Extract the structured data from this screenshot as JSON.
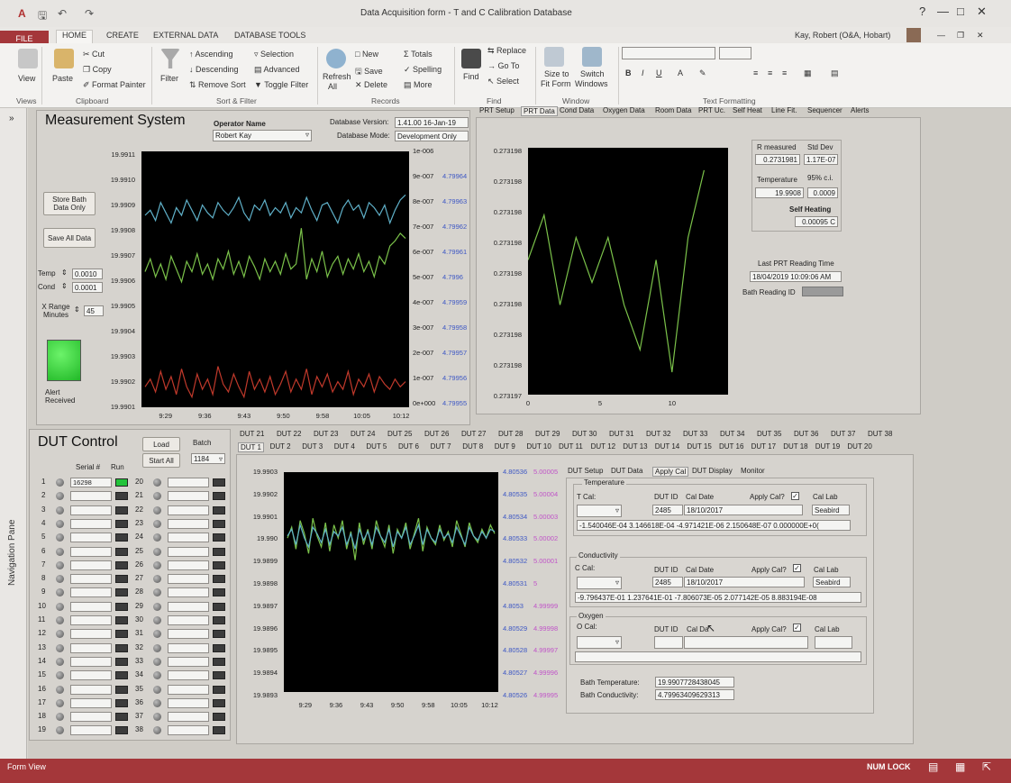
{
  "window": {
    "title": "Data Acquisition form - T and C Calibration Database",
    "user": "Kay, Robert (O&A, Hobart)"
  },
  "ribbon_tabs": [
    "FILE",
    "HOME",
    "CREATE",
    "EXTERNAL DATA",
    "DATABASE TOOLS"
  ],
  "ribbon": {
    "view": "View",
    "views_group": "Views",
    "paste": "Paste",
    "cut": "Cut",
    "copy": "Copy",
    "format_painter": "Format Painter",
    "clipboard_group": "Clipboard",
    "filter": "Filter",
    "ascending": "Ascending",
    "descending": "Descending",
    "remove_sort": "Remove Sort",
    "selection": "Selection",
    "advanced": "Advanced",
    "toggle_filter": "Toggle Filter",
    "sort_filter_group": "Sort & Filter",
    "refresh": "Refresh",
    "refresh2": "All",
    "new": "New",
    "save": "Save",
    "delete": "Delete",
    "totals": "Totals",
    "spelling": "Spelling",
    "more": "More",
    "records_group": "Records",
    "find": "Find",
    "replace": "Replace",
    "goto": "Go To",
    "select": "Select",
    "find_group": "Find",
    "size_to": "Size to",
    "fit_form": "Fit Form",
    "switch": "Switch",
    "windows": "Windows",
    "window_group": "Window",
    "text_formatting_group": "Text Formatting"
  },
  "nav_pane": "Navigation Pane",
  "measurement": {
    "title": "Measurement System",
    "operator_label": "Operator Name",
    "operator_value": "Robert Kay",
    "db_version_label": "Database Version:",
    "db_version_value": "1.41.00 16-Jan-19",
    "db_mode_label": "Database Mode:",
    "db_mode_value": "Development Only",
    "store_bath": "Store Bath Data Only",
    "save_all": "Save All Data",
    "temp_label": "Temp",
    "temp_value": "0.0010",
    "cond_label": "Cond",
    "cond_value": "0.0001",
    "xrange_label": "X Range Minutes",
    "xrange_value": "45",
    "alert_label": "Alert Received"
  },
  "tabs_prt": [
    "PRT Setup",
    "PRT Data",
    "Cond Data",
    "Oxygen Data",
    "Room Data",
    "PRT Uc.",
    "Self Heat",
    "Line Fit.",
    "Sequencer",
    "Alerts"
  ],
  "prt_readings": {
    "r_measured_label": "R measured",
    "std_dev_label": "Std Dev",
    "r_measured": "0.2731981",
    "std_dev": "1.17E-07",
    "temperature_label": "Temperature",
    "ci_label": "95% c.i.",
    "temperature": "19.9908",
    "ci": "0.0009",
    "self_heating_label": "Self Heating",
    "self_heating": "0.00095 C",
    "last_reading_label": "Last PRT Reading Time",
    "last_reading": "18/04/2019 10:09:06 AM",
    "bath_reading_id_label": "Bath Reading ID"
  },
  "chart_data": [
    {
      "type": "line",
      "yticks_left": [
        "19.9911",
        "19.9910",
        "19.9909",
        "19.9908",
        "19.9907",
        "19.9906",
        "19.9905",
        "19.9904",
        "19.9903",
        "19.9902",
        "19.9901"
      ],
      "yticks_right_a": [
        "1e-006",
        "9e-007",
        "8e-007",
        "7e-007",
        "6e-007",
        "5e-007",
        "4e-007",
        "3e-007",
        "2e-007",
        "1e-007",
        "0e+000"
      ],
      "yticks_right_b": [
        "",
        "4.79964",
        "4.79963",
        "4.79962",
        "4.79961",
        "4.7996",
        "4.79959",
        "4.79958",
        "4.79957",
        "4.79956",
        "4.79955"
      ],
      "xticks": [
        "9:29",
        "9:36",
        "9:43",
        "9:50",
        "9:58",
        "10:05",
        "10:12"
      ],
      "series": [
        {
          "color": "#5fb0c8",
          "values": [
            19.99085,
            19.99087,
            19.99083,
            19.9909,
            19.99086,
            19.99082,
            19.99088,
            19.99085,
            19.99091,
            19.99087,
            19.99083,
            19.99089,
            19.99086,
            19.99084,
            19.9909,
            19.99087,
            19.99085,
            19.99088,
            19.99092,
            19.99086,
            19.99083,
            19.99089,
            19.99087,
            19.99091,
            19.99085,
            19.99088,
            19.99086,
            19.9909,
            19.99084,
            19.99088,
            19.99086,
            19.99092,
            19.99087,
            19.99083,
            19.99089,
            19.9909,
            19.99086,
            19.99082,
            19.99088,
            19.99091,
            19.99087,
            19.99089,
            19.99084,
            19.9909,
            19.99088,
            19.99085,
            19.99089,
            19.99082,
            19.99087,
            19.99091,
            19.99093
          ]
        },
        {
          "color": "#7bc24a",
          "values": [
            19.99063,
            19.99068,
            19.99061,
            19.99066,
            19.9906,
            19.99069,
            19.99064,
            19.99059,
            19.99067,
            19.99063,
            19.9907,
            19.99062,
            19.99066,
            19.9906,
            19.99068,
            19.99064,
            19.99071,
            19.99062,
            19.99067,
            19.99061,
            19.99069,
            19.99065,
            19.9906,
            19.99068,
            19.99063,
            19.99067,
            19.99062,
            19.9907,
            19.99064,
            19.99066,
            19.9908,
            19.9906,
            19.99068,
            19.99063,
            19.99071,
            19.99061,
            19.99066,
            19.99069,
            19.99062,
            19.99068,
            19.99064,
            19.9907,
            19.99063,
            19.99067,
            19.99061,
            19.99069,
            19.99066,
            19.99073,
            19.99075,
            19.99078,
            19.99076
          ]
        },
        {
          "color": "#c0392b",
          "values": [
            19.99018,
            19.99021,
            19.99016,
            19.99024,
            19.99017,
            19.99022,
            19.99015,
            19.99025,
            19.99018,
            19.99014,
            19.99023,
            19.99017,
            19.99021,
            19.99015,
            19.99026,
            19.99019,
            19.99016,
            19.99023,
            19.99018,
            19.99014,
            19.99024,
            19.99017,
            19.99021,
            19.99016,
            19.99022,
            19.99015,
            19.99019,
            19.99024,
            19.99016,
            19.99021,
            19.99017,
            19.99025,
            19.99015,
            19.99022,
            19.99018,
            19.99023,
            19.99016,
            19.9902,
            19.99017,
            19.99024,
            19.99015,
            19.99021,
            19.99018,
            19.99023,
            19.99016,
            19.99022,
            19.99019,
            19.99017,
            19.99021,
            19.99018,
            19.9902
          ]
        }
      ],
      "ylim": [
        19.9901,
        19.9911
      ]
    },
    {
      "type": "line",
      "yticks": [
        "0.273198",
        "0.273198",
        "0.273198",
        "0.273198",
        "0.273198",
        "0.273198",
        "0.273198",
        "0.273198",
        "0.273197"
      ],
      "xticks": [
        "0",
        "5",
        "10"
      ],
      "series": [
        {
          "color": "#7bc24a",
          "x": [
            0,
            1,
            2,
            3,
            4,
            5,
            6,
            7,
            8,
            9,
            10,
            11
          ],
          "values": [
            0.2731982,
            0.2731984,
            0.273198,
            0.2731983,
            0.2731981,
            0.2731983,
            0.273198,
            0.2731978,
            0.2731982,
            0.2731977,
            0.2731983,
            0.2731986
          ]
        }
      ],
      "xlim": [
        0,
        12.5
      ]
    },
    {
      "type": "line",
      "yticks_left": [
        "19.9903",
        "19.9902",
        "19.9901",
        "19.990",
        "19.9899",
        "19.9898",
        "19.9897",
        "19.9896",
        "19.9895",
        "19.9894",
        "19.9893"
      ],
      "yticks_right_a": [
        "4.80536",
        "4.80535",
        "4.80534",
        "4.80533",
        "4.80532",
        "4.80531",
        "4.8053",
        "4.80529",
        "4.80528",
        "4.80527",
        "4.80526"
      ],
      "yticks_right_b": [
        "5.00005",
        "5.00004",
        "5.00003",
        "5.00002",
        "5.00001",
        "5",
        "4.99999",
        "4.99998",
        "4.99997",
        "4.99996",
        "4.99995"
      ],
      "xticks": [
        "9:29",
        "9:36",
        "9:43",
        "9:50",
        "9:58",
        "10:05",
        "10:12"
      ],
      "series": [
        {
          "color": "#7bc24a",
          "values": [
            19.99,
            19.99005,
            19.98995,
            19.99008,
            19.99002,
            19.98993,
            19.99009,
            19.99001,
            19.98996,
            19.99007,
            19.98994,
            19.99006,
            19.99,
            19.99008,
            19.98995,
            19.99003,
            19.9899,
            19.99007,
            19.98997,
            19.99004,
            19.98995,
            19.99008,
            19.99001,
            19.98996,
            19.99006,
            19.98993,
            19.99004,
            19.99,
            19.99007,
            19.98995,
            19.99002,
            19.99009,
            19.98994,
            19.99005,
            19.99,
            19.98997,
            19.99006,
            19.98999,
            19.99003,
            19.98996,
            19.99008,
            19.99002,
            19.98996,
            19.99007,
            19.99001,
            19.98998,
            19.99004,
            19.99,
            19.99006,
            19.99002
          ]
        },
        {
          "color": "#5fb0c8",
          "values": [
            19.99001,
            19.99004,
            19.98997,
            19.99006,
            19.99,
            19.98996,
            19.99005,
            19.99002,
            19.98998,
            19.99004,
            19.98997,
            19.99003,
            19.99001,
            19.99005,
            19.98997,
            19.99002,
            19.98995,
            19.99004,
            19.98999,
            19.99003,
            19.98997,
            19.99005,
            19.99001,
            19.98998,
            19.99004,
            19.98996,
            19.99003,
            19.99,
            19.99005,
            19.98997,
            19.99001,
            19.99006,
            19.98997,
            19.99004,
            19.99,
            19.98998,
            19.99004,
            19.99,
            19.99002,
            19.98998,
            19.99005,
            19.99001,
            19.98997,
            19.99005,
            19.99001,
            19.98999,
            19.99003,
            19.99,
            19.99004,
            19.99003
          ]
        }
      ],
      "ylim": [
        19.9893,
        19.9903
      ]
    }
  ],
  "dut_control": {
    "title": "DUT Control",
    "load": "Load",
    "batch": "Batch",
    "start_all": "Start All",
    "batch_value": "1184",
    "serial_label": "Serial #",
    "run_label": "Run",
    "serial_1": "16298",
    "rows_left": [
      "1",
      "2",
      "3",
      "4",
      "5",
      "6",
      "7",
      "8",
      "9",
      "10",
      "11",
      "12",
      "13",
      "14",
      "15",
      "16",
      "17",
      "18",
      "19"
    ],
    "rows_right": [
      "20",
      "21",
      "22",
      "23",
      "24",
      "25",
      "26",
      "27",
      "28",
      "29",
      "30",
      "31",
      "32",
      "33",
      "34",
      "35",
      "36",
      "37",
      "38"
    ]
  },
  "dut_tabs_row1": [
    "DUT 21",
    "DUT 22",
    "DUT 23",
    "DUT 24",
    "DUT 25",
    "DUT 26",
    "DUT 27",
    "DUT 28",
    "DUT 29",
    "DUT 30",
    "DUT 31",
    "DUT 32",
    "DUT 33",
    "DUT 34",
    "DUT 35",
    "DUT 36",
    "DUT 37",
    "DUT 38"
  ],
  "dut_tabs_row2": [
    "DUT 1",
    "DUT 2",
    "DUT 3",
    "DUT 4",
    "DUT 5",
    "DUT 6",
    "DUT 7",
    "DUT 8",
    "DUT 9",
    "DUT 10",
    "DUT 11",
    "DUT 12",
    "DUT 13",
    "DUT 14",
    "DUT 15",
    "DUT 16",
    "DUT 17",
    "DUT 18",
    "DUT 19",
    "DUT 20"
  ],
  "dut_subtabs": [
    "DUT Setup",
    "DUT Data",
    "Apply Cal",
    "DUT Display",
    "Monitor"
  ],
  "cal": {
    "temperature": {
      "group": "Temperature",
      "cal_label": "T Cal:",
      "dut_id_label": "DUT ID",
      "cal_date_label": "Cal Date",
      "apply_label": "Apply Cal?",
      "lab_label": "Cal Lab",
      "dut_id": "2485",
      "cal_date": "18/10/2017",
      "lab": "Seabird",
      "coeffs": "-1.540046E-04  3.146618E-04  -4.971421E-06  2.150648E-07  0.000000E+0("
    },
    "conductivity": {
      "group": "Conductivity",
      "cal_label": "C Cal:",
      "dut_id_label": "DUT ID",
      "cal_date_label": "Cal Date",
      "apply_label": "Apply Cal?",
      "lab_label": "Cal Lab",
      "dut_id": "2485",
      "cal_date": "18/10/2017",
      "lab": "Seabird",
      "coeffs": "-9.796437E-01  1.237641E-01  -7.806073E-05  2.077142E-05  8.883194E-08"
    },
    "oxygen": {
      "group": "Oxygen",
      "cal_label": "O Cal:",
      "dut_id_label": "DUT ID",
      "cal_date_label": "Cal Da",
      "apply_label": "Apply Cal?",
      "lab_label": "Cal Lab"
    },
    "bath_temp_label": "Bath Temperature:",
    "bath_temp": "19.9907728438045",
    "bath_cond_label": "Bath Conductivity:",
    "bath_cond": "4.79963409629313"
  },
  "status": {
    "left": "Form View",
    "num_lock": "NUM LOCK"
  },
  "colors": {
    "file_tab": "#a4373a",
    "alert_led": "#2bd43a",
    "plot_bg": "#000000"
  }
}
